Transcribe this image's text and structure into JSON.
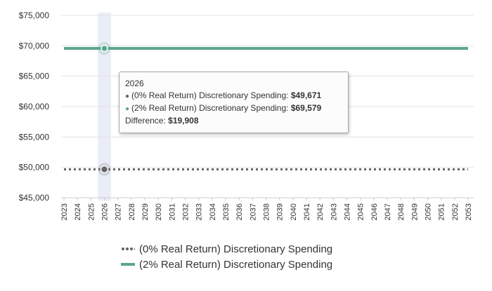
{
  "chart_data": {
    "type": "line",
    "title": "",
    "xlabel": "",
    "ylabel": "",
    "x": [
      2023,
      2024,
      2025,
      2026,
      2027,
      2028,
      2029,
      2030,
      2031,
      2032,
      2033,
      2034,
      2035,
      2036,
      2037,
      2038,
      2039,
      2040,
      2041,
      2042,
      2043,
      2044,
      2045,
      2046,
      2047,
      2048,
      2049,
      2050,
      2051,
      2052,
      2053
    ],
    "x_tick_labels": [
      "2023",
      "2024",
      "2025",
      "2026",
      "2027",
      "2028",
      "2029",
      "2030",
      "2031",
      "2032",
      "2033",
      "2034",
      "2035",
      "2036",
      "2037",
      "2038",
      "2039",
      "2040",
      "2041",
      "2042",
      "2043",
      "2044",
      "2045",
      "2046",
      "2047",
      "2048",
      "2049",
      "2050",
      "2051",
      "2052",
      "2053"
    ],
    "ylim": [
      45000,
      75000
    ],
    "y_ticks": [
      45000,
      50000,
      55000,
      60000,
      65000,
      70000,
      75000
    ],
    "y_tick_labels": [
      "$45,000",
      "$50,000",
      "$55,000",
      "$60,000",
      "$65,000",
      "$70,000",
      "$75,000"
    ],
    "grid": "horizontal",
    "legend_position": "bottom",
    "series": [
      {
        "name": "(0% Real Return) Discretionary Spending",
        "style": "dotted",
        "color": "#666666",
        "values": [
          49671,
          49671,
          49671,
          49671,
          49671,
          49671,
          49671,
          49671,
          49671,
          49671,
          49671,
          49671,
          49671,
          49671,
          49671,
          49671,
          49671,
          49671,
          49671,
          49671,
          49671,
          49671,
          49671,
          49671,
          49671,
          49671,
          49671,
          49671,
          49671,
          49671,
          49671
        ]
      },
      {
        "name": "(2% Real Return) Discretionary Spending",
        "style": "solid",
        "color": "#5aa68e",
        "values": [
          69579,
          69579,
          69579,
          69579,
          69579,
          69579,
          69579,
          69579,
          69579,
          69579,
          69579,
          69579,
          69579,
          69579,
          69579,
          69579,
          69579,
          69579,
          69579,
          69579,
          69579,
          69579,
          69579,
          69579,
          69579,
          69579,
          69579,
          69579,
          69579,
          69579,
          69579
        ]
      }
    ],
    "hover": {
      "x": 2026,
      "band_color": "#e8edf8"
    }
  },
  "tooltip": {
    "year": "2026",
    "dot": "●",
    "row1_label": "(0% Real Return) Discretionary Spending:",
    "row1_value": "$49,671",
    "row2_label": "(2% Real Return) Discretionary Spending:",
    "row2_value": "$69,579",
    "diff_label": "Difference:",
    "diff_value": "$19,908"
  },
  "legend": {
    "item1": "(0% Real Return) Discretionary Spending",
    "item2": "(2% Real Return) Discretionary Spending"
  }
}
